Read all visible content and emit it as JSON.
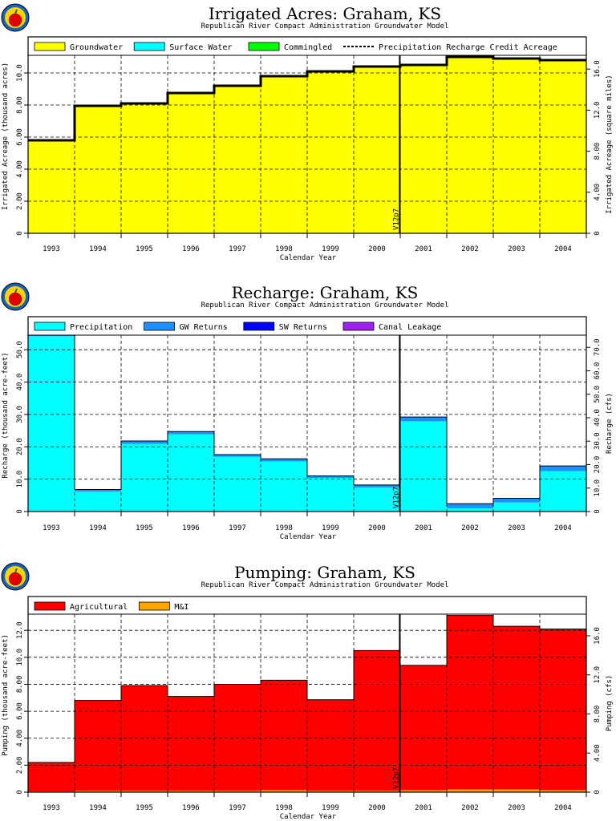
{
  "chart_data": [
    {
      "type": "area",
      "title": "Irrigated  Acres:  Graham,  KS",
      "subtitle": "Republican  River  Compact  Administration  Groundwater  Model",
      "xlabel": "Calendar  Year",
      "ylabel": "Irrigated  Acreage  (thousand  acres)",
      "y2label": "Irrigated  Acreage  (square  miles)",
      "categories": [
        "1993",
        "1994",
        "1995",
        "1996",
        "1997",
        "1998",
        "1999",
        "2000",
        "2001",
        "2002",
        "2003",
        "2004"
      ],
      "ylim": [
        0,
        11.1
      ],
      "yticks": [
        0,
        2.0,
        4.0,
        6.0,
        8.0,
        10.0
      ],
      "yticklabels": [
        "0",
        "2.00",
        "4.00",
        "6.00",
        "8.00",
        "10.0"
      ],
      "y2ticks": [
        0,
        4.0,
        8.0,
        12.0,
        16.0
      ],
      "y2ticklabels": [
        "0",
        "4.00",
        "8.00",
        "12.0",
        "16.0"
      ],
      "y2_per_y": 1.5625,
      "marker_label": "V12p7",
      "marker_index": 7.99,
      "legend": [
        "Groundwater",
        "Surface  Water",
        "Commingled",
        "Precipitation  Recharge  Credit  Acreage"
      ],
      "series": [
        {
          "name": "Groundwater",
          "color": "#ffff00",
          "values": [
            5.8,
            7.95,
            8.1,
            8.75,
            9.2,
            9.8,
            10.1,
            10.4,
            10.5,
            11.0,
            10.9,
            10.8
          ]
        },
        {
          "name": "Surface  Water",
          "color": "#00ffff",
          "values": [
            0,
            0,
            0,
            0,
            0,
            0,
            0,
            0,
            0,
            0,
            0,
            0
          ]
        },
        {
          "name": "Commingled",
          "color": "#00ff00",
          "values": [
            0,
            0,
            0,
            0,
            0,
            0,
            0,
            0,
            0,
            0,
            0,
            0
          ]
        }
      ],
      "line_series": {
        "name": "Precipitation  Recharge  Credit  Acreage",
        "style": "dashed",
        "values": [
          5.8,
          7.95,
          8.1,
          8.75,
          9.2,
          9.8,
          10.1,
          10.4,
          10.5,
          11.0,
          10.9,
          10.8
        ]
      }
    },
    {
      "type": "area",
      "title": "Recharge:  Graham,  KS",
      "subtitle": "Republican  River  Compact  Administration  Groundwater  Model",
      "xlabel": "Calendar  Year",
      "ylabel": "Recharge  (thousand  acre-feet)",
      "y2label": "Recharge  (cfs)",
      "categories": [
        "1993",
        "1994",
        "1995",
        "1996",
        "1997",
        "1998",
        "1999",
        "2000",
        "2001",
        "2002",
        "2003",
        "2004"
      ],
      "ylim": [
        0,
        54.5
      ],
      "yticks": [
        0,
        10.0,
        20.0,
        30.0,
        40.0,
        50.0
      ],
      "yticklabels": [
        "0",
        "10.0",
        "20.0",
        "30.0",
        "40.0",
        "50.0"
      ],
      "y2ticks": [
        0,
        10.0,
        20.0,
        30.0,
        40.0,
        50.0,
        60.0,
        70.0
      ],
      "y2ticklabels": [
        "0",
        "10.0",
        "20.0",
        "30.0",
        "40.0",
        "50.0",
        "60.0",
        "70.0"
      ],
      "y2_per_y": 1.38,
      "marker_label": "V12p7",
      "marker_index": 7.99,
      "legend": [
        "Precipitation",
        "GW  Returns",
        "SW  Returns",
        "Canal  Leakage"
      ],
      "series": [
        {
          "name": "Precipitation",
          "color": "#00ffff",
          "values": [
            54.2,
            6.2,
            20.9,
            23.9,
            16.9,
            15.5,
            10.4,
            7.4,
            27.9,
            1.0,
            2.8,
            12.5
          ]
        },
        {
          "name": "GW  Returns",
          "color": "#1e90ff",
          "values": [
            0.3,
            0.6,
            0.9,
            0.8,
            0.7,
            0.8,
            0.6,
            0.8,
            1.3,
            1.4,
            1.3,
            1.6
          ]
        },
        {
          "name": "SW  Returns",
          "color": "#0000ff",
          "values": [
            0,
            0,
            0,
            0,
            0,
            0,
            0,
            0,
            0,
            0,
            0,
            0
          ]
        },
        {
          "name": "Canal  Leakage",
          "color": "#a020f0",
          "values": [
            0,
            0,
            0,
            0,
            0,
            0,
            0,
            0,
            0,
            0,
            0,
            0
          ]
        }
      ]
    },
    {
      "type": "area",
      "title": "Pumping:  Graham,  KS",
      "subtitle": "Republican  River  Compact  Administration  Groundwater  Model",
      "xlabel": "Calendar  Year",
      "ylabel": "Pumping  (thousand  acre-feet)",
      "y2label": "Pumping  (cfs)",
      "categories": [
        "1993",
        "1994",
        "1995",
        "1996",
        "1997",
        "1998",
        "1999",
        "2000",
        "2001",
        "2002",
        "2003",
        "2004"
      ],
      "ylim": [
        0,
        13.2
      ],
      "yticks": [
        0,
        2.0,
        4.0,
        6.0,
        8.0,
        10.0,
        12.0
      ],
      "yticklabels": [
        "0",
        "2.00",
        "4.00",
        "6.00",
        "8.00",
        "10.0",
        "12.0"
      ],
      "y2ticks": [
        0,
        4.0,
        8.0,
        12.0,
        16.0
      ],
      "y2ticklabels": [
        "0",
        "4.00",
        "8.00",
        "12.0",
        "16.0"
      ],
      "y2_per_y": 1.38,
      "marker_label": "V12p7",
      "marker_index": 7.99,
      "legend": [
        "Agricultural",
        "M&I"
      ],
      "series": [
        {
          "name": "M&I",
          "color": "#ffa500",
          "values": [
            0.05,
            0.1,
            0.1,
            0.1,
            0.1,
            0.15,
            0.1,
            0.1,
            0.15,
            0.2,
            0.2,
            0.15
          ]
        },
        {
          "name": "Agricultural",
          "color": "#ff0000",
          "values": [
            2.15,
            6.7,
            7.8,
            7.0,
            7.9,
            8.15,
            6.75,
            10.4,
            9.25,
            12.9,
            12.1,
            11.95
          ]
        }
      ]
    }
  ]
}
